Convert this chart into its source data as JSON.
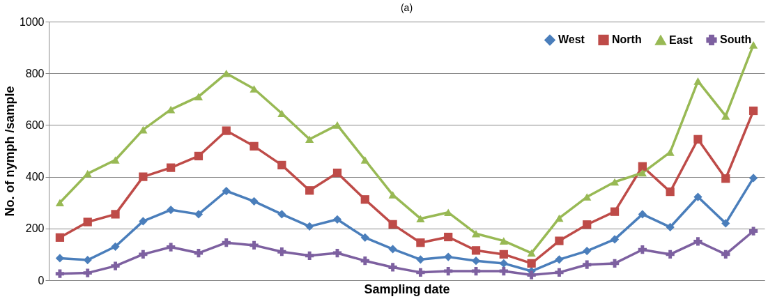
{
  "chart_data": {
    "type": "line",
    "title": "(a)",
    "xlabel": "Sampling date",
    "ylabel": "No. of nymph /sample",
    "categories": [
      null,
      null,
      null,
      null,
      null,
      null,
      null,
      null,
      null,
      null,
      null,
      null,
      null,
      null,
      null,
      null,
      null,
      null,
      null,
      null,
      null,
      null,
      null,
      null,
      null,
      null
    ],
    "series": [
      {
        "name": "West",
        "color": "#4a7ebb",
        "marker": "diamond",
        "values": [
          85,
          78,
          130,
          228,
          272,
          255,
          345,
          305,
          255,
          208,
          235,
          165,
          120,
          80,
          90,
          75,
          65,
          35,
          80,
          113,
          158,
          255,
          205,
          322,
          220,
          395
        ]
      },
      {
        "name": "North",
        "color": "#be4b48",
        "marker": "square",
        "values": [
          165,
          225,
          255,
          400,
          435,
          480,
          578,
          518,
          445,
          347,
          415,
          312,
          216,
          145,
          167,
          115,
          100,
          65,
          152,
          215,
          265,
          440,
          342,
          545,
          393,
          655
        ]
      },
      {
        "name": "East",
        "color": "#98b954",
        "marker": "triangle",
        "values": [
          300,
          412,
          465,
          582,
          660,
          710,
          800,
          740,
          645,
          545,
          600,
          465,
          330,
          238,
          262,
          180,
          152,
          105,
          240,
          322,
          380,
          415,
          495,
          770,
          635,
          910
        ]
      },
      {
        "name": "South",
        "color": "#7d60a0",
        "marker": "cross",
        "values": [
          25,
          28,
          55,
          100,
          128,
          105,
          145,
          135,
          110,
          95,
          105,
          75,
          50,
          30,
          35,
          35,
          35,
          20,
          30,
          60,
          65,
          118,
          100,
          150,
          100,
          190
        ]
      }
    ],
    "ylim": [
      0,
      1000
    ],
    "yticks": [
      0,
      200,
      400,
      600,
      800,
      1000
    ],
    "grid": "y",
    "legend": "top right",
    "tick_labels": "y",
    "line_style": "solid"
  }
}
